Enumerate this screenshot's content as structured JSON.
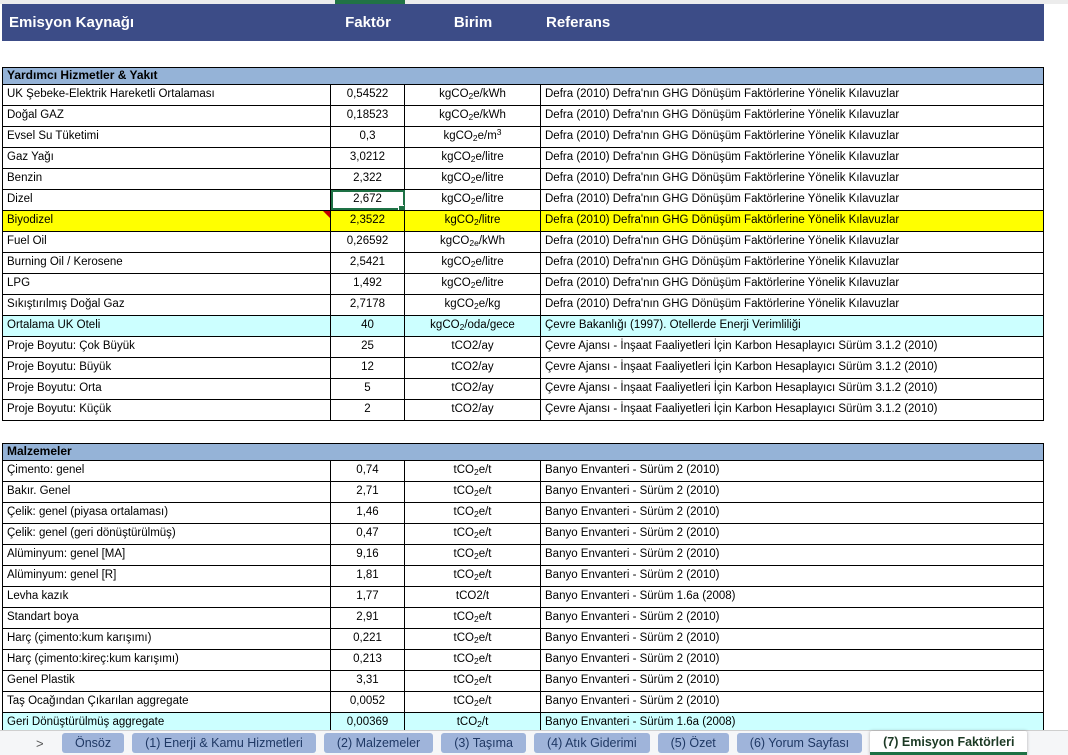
{
  "colors": {
    "header_bg": "#3C4C87",
    "section_bg": "#95B3D7",
    "highlight_yellow": "#FFFF00",
    "highlight_cyan": "#CCFFFF",
    "selection_green": "#1E7145",
    "tab_bg": "#9FB4DA",
    "tab_text": "#1F3864",
    "comment_red": "#C00000"
  },
  "table": {
    "headers": {
      "source": "Emisyon Kaynağı",
      "factor": "Faktör",
      "unit": "Birim",
      "reference": "Referans"
    },
    "sections": [
      {
        "title": "Yardımcı Hizmetler & Yakıt",
        "rows": [
          {
            "name": "UK Şebeke-Elektrik Hareketli Ortalaması",
            "factor": "0,54522",
            "unit": "kgCO_2_e/kWh",
            "reference": "Defra (2010) Defra'nın GHG Dönüşüm Faktörlerine Yönelik Kılavuzlar"
          },
          {
            "name": "Doğal GAZ",
            "factor": "0,18523",
            "unit": "kgCO_2_e/kWh",
            "reference": "Defra (2010) Defra'nın GHG Dönüşüm Faktörlerine Yönelik Kılavuzlar"
          },
          {
            "name": "Evsel Su Tüketimi",
            "factor": "0,3",
            "unit": "kgCO_2_e/m^3^",
            "reference": "Defra (2010) Defra'nın GHG Dönüşüm Faktörlerine Yönelik Kılavuzlar"
          },
          {
            "name": "Gaz Yağı",
            "factor": "3,0212",
            "unit": "kgCO_2_e/litre",
            "reference": "Defra (2010) Defra'nın GHG Dönüşüm Faktörlerine Yönelik Kılavuzlar"
          },
          {
            "name": "Benzin",
            "factor": "2,322",
            "unit": "kgCO_2_e/litre",
            "reference": "Defra (2010) Defra'nın GHG Dönüşüm Faktörlerine Yönelik Kılavuzlar"
          },
          {
            "name": "Dizel",
            "factor": "2,672",
            "unit": "kgCO_2_e/litre",
            "reference": "Defra (2010) Defra'nın GHG Dönüşüm Faktörlerine Yönelik Kılavuzlar",
            "selected": true
          },
          {
            "name": "Biyodizel",
            "factor": "2,3522",
            "unit": "kgCO_2_/litre",
            "reference": "Defra (2010) Defra'nın GHG Dönüşüm Faktörlerine Yönelik Kılavuzlar",
            "highlight": "yellow",
            "comment": true
          },
          {
            "name": "Fuel Oil",
            "factor": "0,26592",
            "unit": "kgCO_2e_/kWh",
            "reference": "Defra (2010) Defra'nın GHG Dönüşüm Faktörlerine Yönelik Kılavuzlar"
          },
          {
            "name": "Burning Oil / Kerosene",
            "factor": "2,5421",
            "unit": "kgCO_2_e/litre",
            "reference": "Defra (2010) Defra'nın GHG Dönüşüm Faktörlerine Yönelik Kılavuzlar"
          },
          {
            "name": "LPG",
            "factor": "1,492",
            "unit": "kgCO_2_e/litre",
            "reference": "Defra (2010) Defra'nın GHG Dönüşüm Faktörlerine Yönelik Kılavuzlar"
          },
          {
            "name": "Sıkıştırılmış Doğal Gaz",
            "factor": "2,7178",
            "unit": "kgCO_2_e/kg",
            "reference": "Defra (2010) Defra'nın GHG Dönüşüm Faktörlerine Yönelik Kılavuzlar"
          },
          {
            "name": "Ortalama UK Oteli",
            "factor": "40",
            "unit": "kgCO_2_/oda/gece",
            "reference": "Çevre Bakanlığı (1997). Otellerde Enerji Verimliliği",
            "highlight": "cyan"
          },
          {
            "name": "Proje Boyutu: Çok Büyük",
            "factor": "25",
            "unit": "tCO2/ay",
            "reference": "Çevre Ajansı - İnşaat Faaliyetleri İçin Karbon Hesaplayıcı Sürüm  3.1.2 (2010)"
          },
          {
            "name": "Proje Boyutu: Büyük",
            "factor": "12",
            "unit": "tCO2/ay",
            "reference": "Çevre Ajansı - İnşaat Faaliyetleri İçin Karbon Hesaplayıcı Sürüm  3.1.2 (2010)"
          },
          {
            "name": "Proje Boyutu: Orta",
            "factor": "5",
            "unit": "tCO2/ay",
            "reference": "Çevre Ajansı - İnşaat Faaliyetleri İçin Karbon Hesaplayıcı Sürüm  3.1.2 (2010)"
          },
          {
            "name": "Proje Boyutu: Küçük",
            "factor": "2",
            "unit": "tCO2/ay",
            "reference": "Çevre Ajansı - İnşaat Faaliyetleri İçin Karbon Hesaplayıcı Sürüm  3.1.2 (2010)"
          }
        ]
      },
      {
        "title": "Malzemeler",
        "rows": [
          {
            "name": "Çimento: genel",
            "factor": "0,74",
            "unit": "tCO_2_e/t",
            "reference": "Banyo Envanteri - Sürüm 2 (2010)"
          },
          {
            "name": "Bakır. Genel",
            "factor": "2,71",
            "unit": "tCO_2_e/t",
            "reference": "Banyo Envanteri - Sürüm 2 (2010)"
          },
          {
            "name": "Çelik: genel (piyasa ortalaması)",
            "factor": "1,46",
            "unit": "tCO_2_e/t",
            "reference": "Banyo Envanteri - Sürüm 2 (2010)"
          },
          {
            "name": "Çelik: genel (geri dönüştürülmüş)",
            "factor": "0,47",
            "unit": "tCO_2_e/t",
            "reference": "Banyo Envanteri - Sürüm 2 (2010)"
          },
          {
            "name": "Alüminyum: genel [MA]",
            "factor": "9,16",
            "unit": "tCO_2_e/t",
            "reference": "Banyo Envanteri - Sürüm 2 (2010)"
          },
          {
            "name": "Alüminyum: genel [R]",
            "factor": "1,81",
            "unit": "tCO_2_e/t",
            "reference": "Banyo Envanteri - Sürüm 2 (2010)"
          },
          {
            "name": "Levha kazık",
            "factor": "1,77",
            "unit": "tCO2/t",
            "reference": "Banyo Envanteri - Sürüm 1.6a (2008)"
          },
          {
            "name": "Standart boya",
            "factor": "2,91",
            "unit": "tCO_2_e/t",
            "reference": "Banyo Envanteri - Sürüm 2 (2010)"
          },
          {
            "name": "Harç (çimento:kum karışımı)",
            "factor": "0,221",
            "unit": "tCO_2_e/t",
            "reference": "Banyo Envanteri - Sürüm 2 (2010)"
          },
          {
            "name": "Harç (çimento:kireç:kum karışımı)",
            "factor": "0,213",
            "unit": "tCO_2_e/t",
            "reference": "Banyo Envanteri - Sürüm 2 (2010)"
          },
          {
            "name": "Genel Plastik",
            "factor": "3,31",
            "unit": "tCO_2_e/t",
            "reference": "Banyo Envanteri - Sürüm 2 (2010)"
          },
          {
            "name": "Taş Ocağından Çıkarılan aggregate",
            "factor": "0,0052",
            "unit": "tCO_2_e/t",
            "reference": "Banyo Envanteri - Sürüm 2 (2010)"
          },
          {
            "name": "Geri Dönüştürülmüş aggregate",
            "factor": "0,00369",
            "unit": "tCO_2_/t",
            "reference": "Banyo Envanteri - Sürüm 1.6a (2008)",
            "highlight": "cyan"
          }
        ]
      }
    ]
  },
  "tab_bar": {
    "nav_arrow": ">",
    "tabs": [
      {
        "id": "tab-onsoz",
        "label": "Önsöz",
        "active": false
      },
      {
        "id": "tab-1-enerji-kamu-hizmetleri",
        "label": "(1) Enerji & Kamu Hizmetleri",
        "active": false
      },
      {
        "id": "tab-2-malzemeler",
        "label": "(2) Malzemeler",
        "active": false
      },
      {
        "id": "tab-3-tasima",
        "label": "(3) Taşıma",
        "active": false
      },
      {
        "id": "tab-4-atik-giderimi",
        "label": "(4) Atık Giderimi",
        "active": false
      },
      {
        "id": "tab-5-ozet",
        "label": "(5) Özet",
        "active": false
      },
      {
        "id": "tab-6-yorum-sayfasi",
        "label": "(6) Yorum Sayfası",
        "active": false
      },
      {
        "id": "tab-7-emisyon-faktorleri",
        "label": "(7) Emisyon Faktörleri",
        "active": true
      }
    ]
  }
}
